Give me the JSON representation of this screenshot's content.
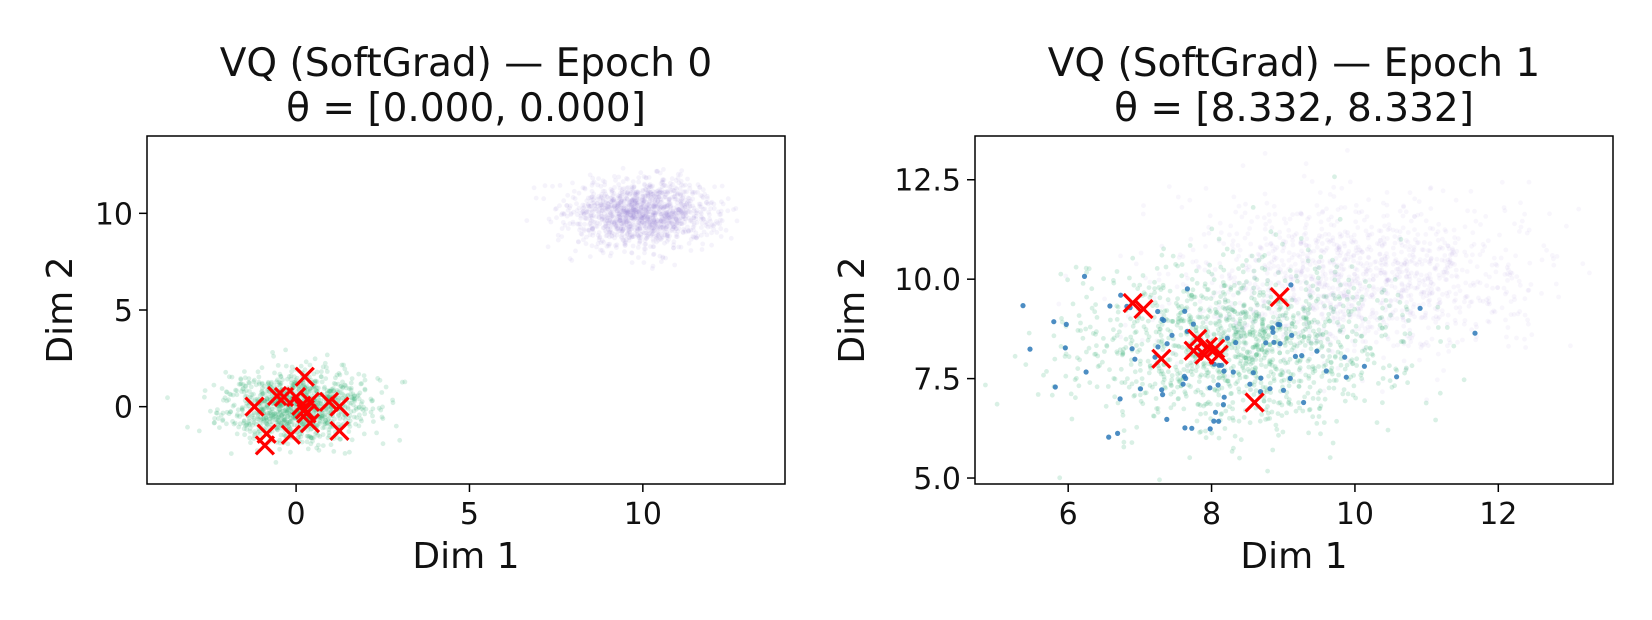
{
  "chart_data": [
    {
      "type": "scatter",
      "title": "VQ (SoftGrad) — Epoch 0",
      "subtitle": "θ = [0.000, 0.000]",
      "xlabel": "Dim 1",
      "ylabel": "Dim 2",
      "xlim": [
        -4.3,
        14.1
      ],
      "ylim": [
        -4.0,
        14.0
      ],
      "xticks": [
        0,
        5,
        10
      ],
      "yticks": [
        0,
        5,
        10
      ],
      "grid": false,
      "legend": "none",
      "clusters": [
        {
          "role": "background",
          "center": [
            10.0,
            10.0
          ],
          "spread": [
            1.05,
            0.85
          ],
          "count": 1400,
          "color": "#9a86d8",
          "alpha": 0.1
        },
        {
          "role": "data",
          "center": [
            0.0,
            0.0
          ],
          "spread": [
            1.0,
            0.9
          ],
          "count": 1100,
          "color": "#3fb47c",
          "alpha": 0.2
        }
      ],
      "codebook": {
        "color": "#ff0000",
        "marker": "x",
        "points": [
          [
            -1.2,
            0.0
          ],
          [
            -0.55,
            0.55
          ],
          [
            -0.35,
            0.5
          ],
          [
            0.0,
            0.5
          ],
          [
            0.25,
            1.55
          ],
          [
            0.15,
            0.05
          ],
          [
            0.25,
            -0.15
          ],
          [
            0.4,
            0.25
          ],
          [
            0.3,
            -0.35
          ],
          [
            0.4,
            -0.85
          ],
          [
            -0.85,
            -1.4
          ],
          [
            -0.15,
            -1.45
          ],
          [
            -0.9,
            -2.0
          ],
          [
            0.95,
            0.25
          ],
          [
            1.25,
            0.0
          ],
          [
            1.25,
            -1.25
          ]
        ]
      }
    },
    {
      "type": "scatter",
      "title": "VQ (SoftGrad) — Epoch 1",
      "subtitle": "θ = [8.332, 8.332]",
      "xlabel": "Dim 1",
      "ylabel": "Dim 2",
      "xlim": [
        4.7,
        13.6
      ],
      "ylim": [
        4.85,
        13.6
      ],
      "xticks": [
        6,
        8,
        10,
        12
      ],
      "ytick_labels": [
        "5.0",
        "7.5",
        "10.0",
        "12.5"
      ],
      "yticks": [
        5.0,
        7.5,
        10.0,
        12.5
      ],
      "grid": false,
      "legend": "none",
      "clusters": [
        {
          "role": "background",
          "center": [
            10.0,
            10.0
          ],
          "spread": [
            1.2,
            1.0
          ],
          "count": 1300,
          "color": "#9a86d8",
          "alpha": 0.07
        },
        {
          "role": "data",
          "center": [
            8.3,
            8.4
          ],
          "spread": [
            1.1,
            1.0
          ],
          "count": 1300,
          "color": "#3fb47c",
          "alpha": 0.2
        },
        {
          "role": "assigned",
          "center": [
            8.0,
            8.0
          ],
          "spread": [
            1.1,
            1.0
          ],
          "count": 80,
          "color": "#2d79b8",
          "alpha": 0.85
        }
      ],
      "codebook": {
        "color": "#ff0000",
        "marker": "x",
        "points": [
          [
            6.9,
            9.4
          ],
          [
            7.05,
            9.25
          ],
          [
            8.95,
            9.55
          ],
          [
            7.8,
            8.5
          ],
          [
            7.75,
            8.2
          ],
          [
            7.95,
            8.3
          ],
          [
            8.05,
            8.25
          ],
          [
            7.9,
            8.1
          ],
          [
            8.1,
            8.1
          ],
          [
            7.3,
            8.0
          ],
          [
            8.6,
            6.9
          ]
        ]
      }
    }
  ]
}
